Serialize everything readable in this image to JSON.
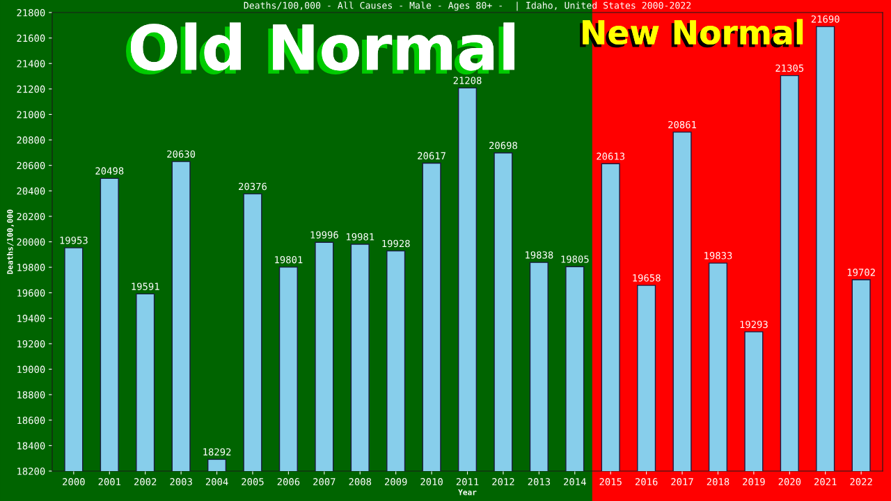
{
  "chart_data": {
    "type": "bar",
    "title": "Deaths/100,000 - All Causes - Male - Ages 80+ -  | Idaho, United States 2000-2022",
    "xlabel": "Year",
    "ylabel": "Deaths/100,000",
    "categories": [
      "2000",
      "2001",
      "2002",
      "2003",
      "2004",
      "2005",
      "2006",
      "2007",
      "2008",
      "2009",
      "2010",
      "2011",
      "2012",
      "2013",
      "2014",
      "2015",
      "2016",
      "2017",
      "2018",
      "2019",
      "2020",
      "2021",
      "2022"
    ],
    "values": [
      19953,
      20498,
      19591,
      20630,
      18292,
      20376,
      19801,
      19996,
      19981,
      19928,
      20617,
      21208,
      20698,
      19838,
      19805,
      20613,
      19658,
      20861,
      19833,
      19293,
      21305,
      21690,
      19702
    ],
    "color": "#87ceeb",
    "data_labels": true,
    "grid": false,
    "legend": false,
    "ylim": [
      18200,
      21800
    ],
    "yticks": [
      18200,
      18400,
      18600,
      18800,
      19000,
      19200,
      19400,
      19600,
      19800,
      20000,
      20200,
      20400,
      20600,
      20800,
      21000,
      21200,
      21400,
      21600,
      21800
    ],
    "bands": [
      {
        "axis": "x",
        "from": "2000",
        "to": "2014",
        "label": "Old Normal",
        "color": "#006400"
      },
      {
        "axis": "x",
        "from": "2015",
        "to": "2022",
        "label": "New Normal",
        "color": "#ff0000"
      }
    ]
  }
}
